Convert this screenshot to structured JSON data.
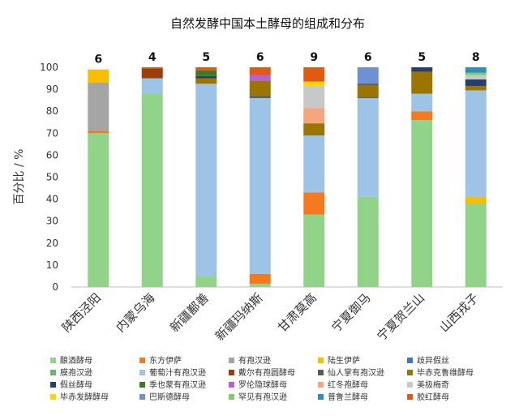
{
  "chart_data": {
    "type": "bar",
    "stacked": true,
    "title": "自然发酵中国本土酵母的组成和分布",
    "ylabel": "百分比 / %",
    "xlabel": "",
    "ylim": [
      0,
      100
    ],
    "yticks": [
      0,
      10,
      20,
      30,
      40,
      50,
      60,
      70,
      80,
      90,
      100
    ],
    "grid": false,
    "legend_position": "bottom",
    "categories": [
      "陕西泾阳",
      "内蒙乌海",
      "新疆鄯善",
      "新疆玛纳斯",
      "甘肃莫高",
      "宁夏御马",
      "宁夏贺兰山",
      "山西戎子"
    ],
    "counts": [
      "6",
      "4",
      "5",
      "6",
      "9",
      "6",
      "5",
      "8"
    ],
    "series": [
      {
        "name": "酿酒酵母",
        "color": "#92d38a",
        "values": [
          70,
          88,
          5,
          1.5,
          33,
          41,
          76,
          38
        ]
      },
      {
        "name": "东方伊萨",
        "color": "#f4791f",
        "values": [
          1,
          0,
          0,
          4.5,
          10,
          0,
          4,
          0
        ]
      },
      {
        "name": "有孢汉逊",
        "color": "#a5a5a5",
        "values": [
          22,
          0,
          0,
          0,
          0,
          0,
          0,
          0
        ]
      },
      {
        "name": "陆生伊萨",
        "color": "#f5bf00",
        "values": [
          6,
          0,
          0,
          0,
          0,
          0,
          0,
          3
        ]
      },
      {
        "name": "歧异假丝",
        "color": "#4472c4",
        "values": [
          0,
          0,
          0,
          0,
          0,
          0,
          0,
          0
        ]
      },
      {
        "name": "膜孢汉逊",
        "color": "#6db36d",
        "values": [
          0,
          0,
          0,
          0,
          0,
          0,
          0,
          0
        ]
      },
      {
        "name": "葡萄汁有孢汉逊",
        "color": "#9dc3e6",
        "values": [
          0,
          7,
          87.5,
          80,
          26,
          45,
          8,
          48.5
        ]
      },
      {
        "name": "戴尔有孢圆酵母",
        "color": "#9e3d0b",
        "values": [
          0,
          4.5,
          0,
          0,
          0,
          0,
          0,
          0
        ]
      },
      {
        "name": "仙人掌有孢汉逊",
        "color": "#595959",
        "values": [
          0,
          0,
          0,
          1,
          0,
          0.5,
          0,
          0
        ]
      },
      {
        "name": "毕赤克鲁维酵母",
        "color": "#9c7400",
        "values": [
          0,
          0,
          2.5,
          7,
          5.5,
          5.5,
          10,
          2
        ]
      },
      {
        "name": "假丝酵母",
        "color": "#263f6e",
        "values": [
          0,
          0,
          1,
          0,
          0,
          0.5,
          2,
          3
        ]
      },
      {
        "name": "季也蒙有孢汉逊",
        "color": "#3b7a2a",
        "values": [
          0,
          0,
          2.5,
          0,
          0,
          0,
          0,
          0
        ]
      },
      {
        "name": "罗伦隐球酵母",
        "color": "#b55fe0",
        "values": [
          0,
          0,
          0,
          2.5,
          0,
          0,
          0,
          0
        ]
      },
      {
        "name": "红冬孢酵母",
        "color": "#f4a77c",
        "values": [
          0,
          0,
          0,
          0,
          7,
          0,
          0,
          0
        ]
      },
      {
        "name": "美极梅奇",
        "color": "#c8c8c8",
        "values": [
          0,
          0,
          0,
          0,
          10,
          0,
          0,
          2
        ]
      },
      {
        "name": "毕赤发酵酵母",
        "color": "#ffd400",
        "values": [
          0,
          0,
          0,
          0,
          2,
          0,
          0,
          0
        ]
      },
      {
        "name": "巴斯德酵母",
        "color": "#6f91d4",
        "values": [
          0,
          0,
          0,
          0,
          0,
          7.5,
          0,
          0
        ]
      },
      {
        "name": "罕见有孢汉逊",
        "color": "#7bcf68",
        "values": [
          0,
          0,
          0,
          0,
          0,
          0,
          0,
          1
        ]
      },
      {
        "name": "普鲁兰酵母",
        "color": "#2e8fb8",
        "values": [
          0,
          0,
          0,
          0,
          0,
          0,
          0,
          2.5
        ]
      },
      {
        "name": "胶红酵母",
        "color": "#e05a12",
        "values": [
          0,
          0.5,
          1.5,
          3.5,
          6.5,
          0,
          0,
          0
        ]
      }
    ]
  }
}
